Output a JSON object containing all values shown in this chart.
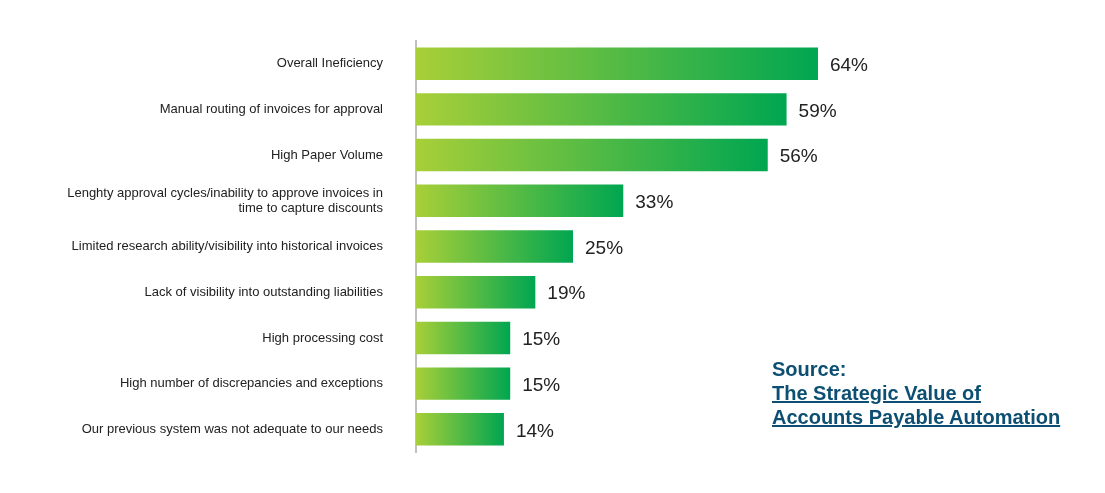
{
  "chart_data": {
    "type": "bar",
    "orientation": "horizontal",
    "categories": [
      "Overall Ineficiency",
      "Manual routing of invoices for approval",
      "High Paper Volume",
      "Lenghty approval cycles/inability to approve invoices in time to capture discounts",
      "Limited research ability/visibility into historical invoices",
      "Lack of visibility into outstanding liabilities",
      "High processing cost",
      "High number of discrepancies and exceptions",
      "Our previous system was not adequate to our needs"
    ],
    "values": [
      64,
      59,
      56,
      33,
      25,
      19,
      15,
      15,
      14
    ],
    "value_labels": [
      "64%",
      "59%",
      "56%",
      "33%",
      "25%",
      "19%",
      "15%",
      "15%",
      "14%"
    ],
    "color": "#00a651",
    "legend": false,
    "annotations": [
      "Source:",
      "The Strategic Value of Accounts Payable Automation"
    ]
  }
}
